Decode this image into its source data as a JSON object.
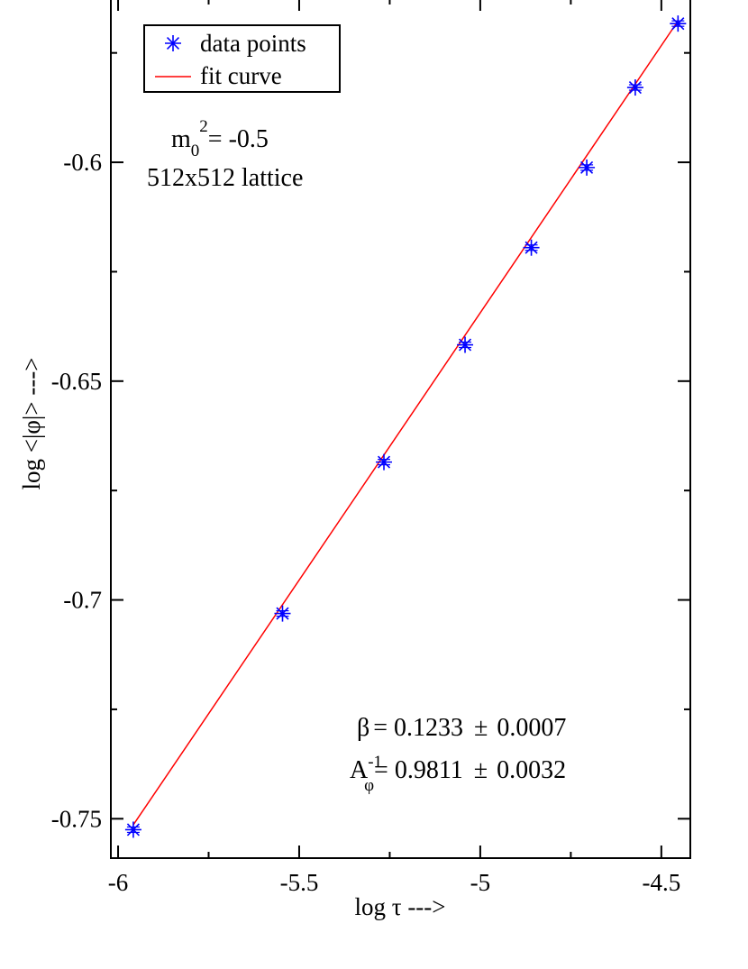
{
  "chart_data": {
    "type": "scatter",
    "xlabel": "log τ --->",
    "ylabel": "log <|φ|> --->",
    "xlim": [
      -6.02,
      -4.42
    ],
    "ylim": [
      -0.759,
      -0.5625
    ],
    "x_ticks": [
      -6,
      -5.5,
      -5,
      -4.5
    ],
    "x_tick_labels": [
      "-6",
      "-5.5",
      "-5",
      "-4.5"
    ],
    "y_ticks": [
      -0.75,
      -0.7,
      -0.65,
      -0.6
    ],
    "y_tick_labels": [
      "-0.75",
      "-0.7",
      "-0.65",
      "-0.6"
    ],
    "series": [
      {
        "name": "data points",
        "marker": "asterisk",
        "color": "#0000ff",
        "x": [
          -5.958,
          -5.546,
          -5.266,
          -5.042,
          -4.859,
          -4.706,
          -4.572,
          -4.454
        ],
        "y": [
          -0.7525,
          -0.7031,
          -0.6685,
          -0.6417,
          -0.6195,
          -0.6012,
          -0.5829,
          -0.5683
        ]
      },
      {
        "name": "fit curve",
        "marker": "line",
        "color": "#ff0000",
        "x": [
          -5.958,
          -4.454
        ],
        "y": [
          -0.7514,
          -0.5677
        ]
      }
    ],
    "legend": {
      "position": "top-left"
    },
    "annotations": {
      "mass": {
        "base": "m",
        "sub": "0",
        "sup": "2",
        "rest": "= -0.5"
      },
      "lattice": "512x512 lattice",
      "beta": {
        "symbol": "β",
        "value": "= 0.1233",
        "pm": "±",
        "err": "0.0007"
      },
      "amp": {
        "base": "A",
        "sup": "-1",
        "sub": "φ",
        "value": "= 0.9811",
        "pm": "±",
        "err": "0.0032"
      }
    }
  }
}
